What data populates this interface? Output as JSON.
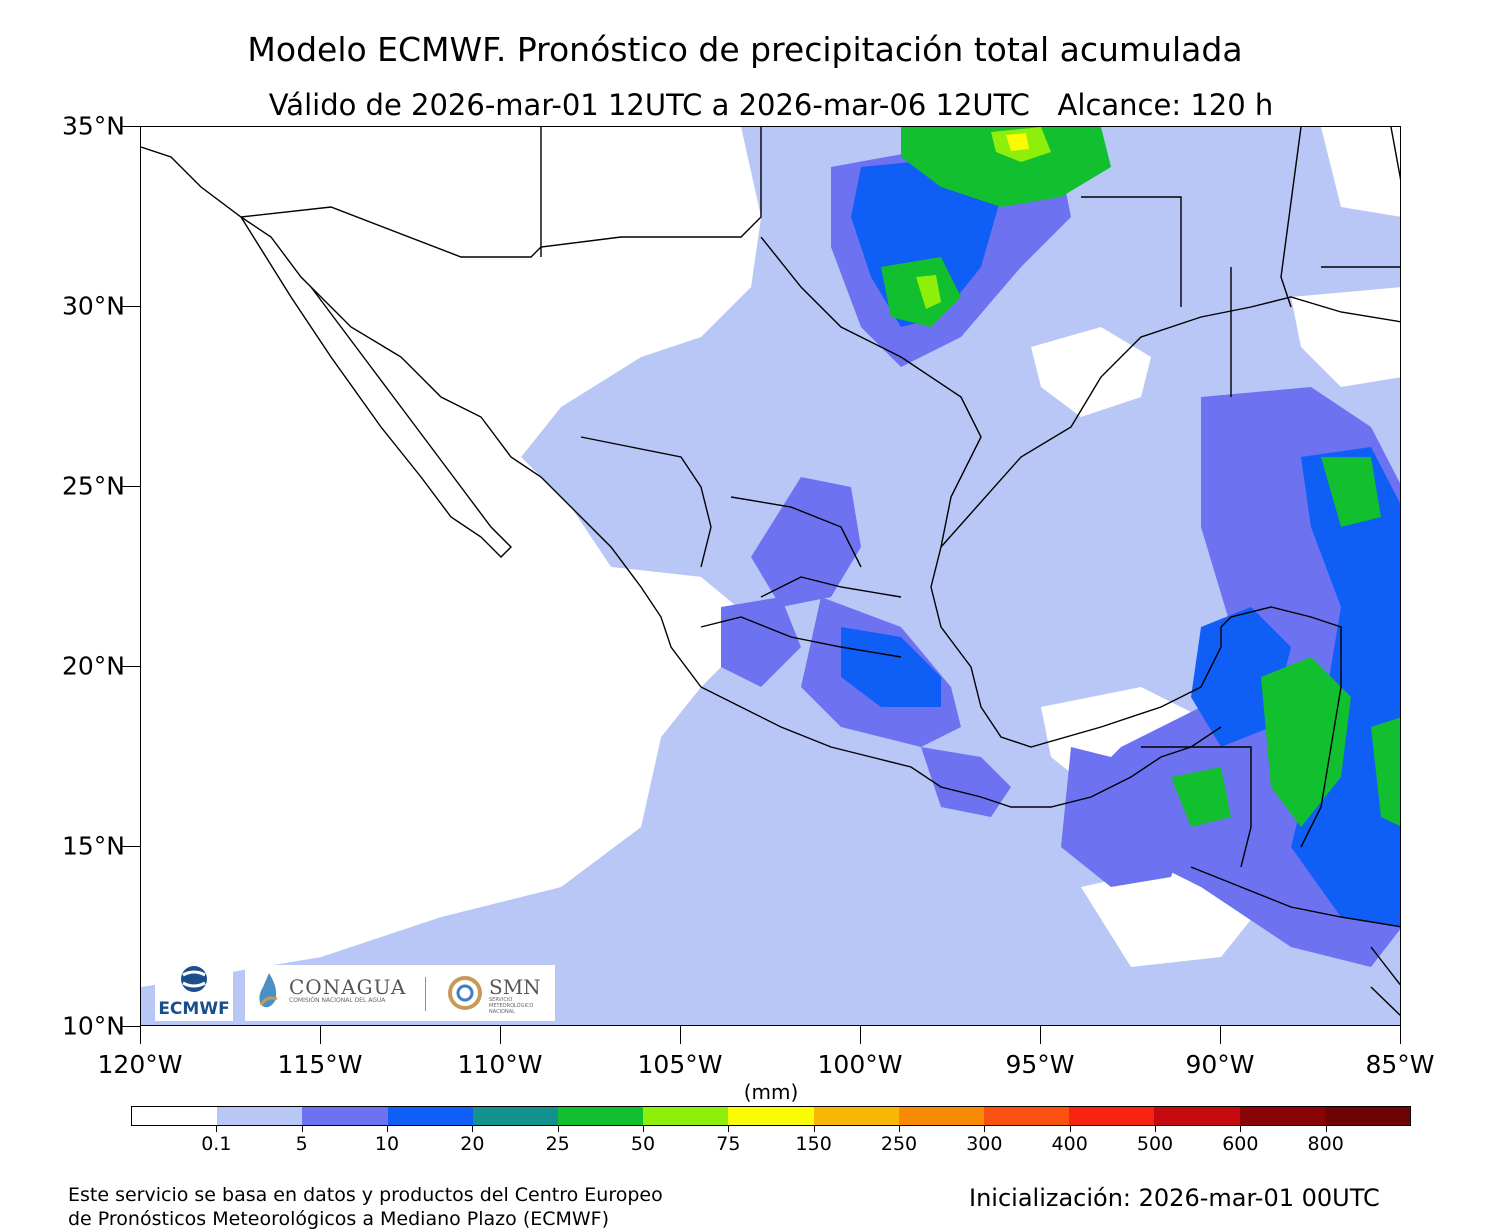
{
  "title": "Modelo ECMWF. Pronóstico de precipitación total acumulada",
  "subtitle": "Válido de 2026-mar-01 12UTC a 2026-mar-06 12UTC   Alcance: 120 h",
  "map": {
    "lat_labels": [
      "35°N",
      "30°N",
      "25°N",
      "20°N",
      "15°N",
      "10°N"
    ],
    "lon_labels": [
      "120°W",
      "115°W",
      "110°W",
      "105°W",
      "100°W",
      "95°W",
      "90°W",
      "85°W"
    ],
    "land_color": "#ffffff",
    "ocean_color": "#ffffff"
  },
  "legend": {
    "units": "(mm)",
    "colors": [
      "#ffffff",
      "#b9c7f7",
      "#6c72f0",
      "#0f5ef5",
      "#13918f",
      "#11bf2f",
      "#8ef00a",
      "#fbfb06",
      "#f7b704",
      "#f98a05",
      "#f95110",
      "#f7230f",
      "#c50a0f",
      "#8a0306",
      "#6d0304"
    ],
    "labels": [
      "0.1",
      "5",
      "10",
      "20",
      "25",
      "50",
      "75",
      "150",
      "250",
      "300",
      "400",
      "500",
      "600",
      "800"
    ]
  },
  "logos": {
    "ecmwf": "ECMWF",
    "conagua": "CONAGUA",
    "conagua_sub": "COMISIÓN NACIONAL DEL AGUA",
    "smn": "SMN",
    "smn_sub": "SERVICIO METEOROLÓGICO NACIONAL"
  },
  "footer": {
    "credit_line1": "Este servicio se basa en datos y productos del Centro Europeo",
    "credit_line2": "de Pronósticos Meteorológicos a Mediano Plazo (ECMWF)",
    "init": "Inicialización: 2026-mar-01 00UTC"
  }
}
